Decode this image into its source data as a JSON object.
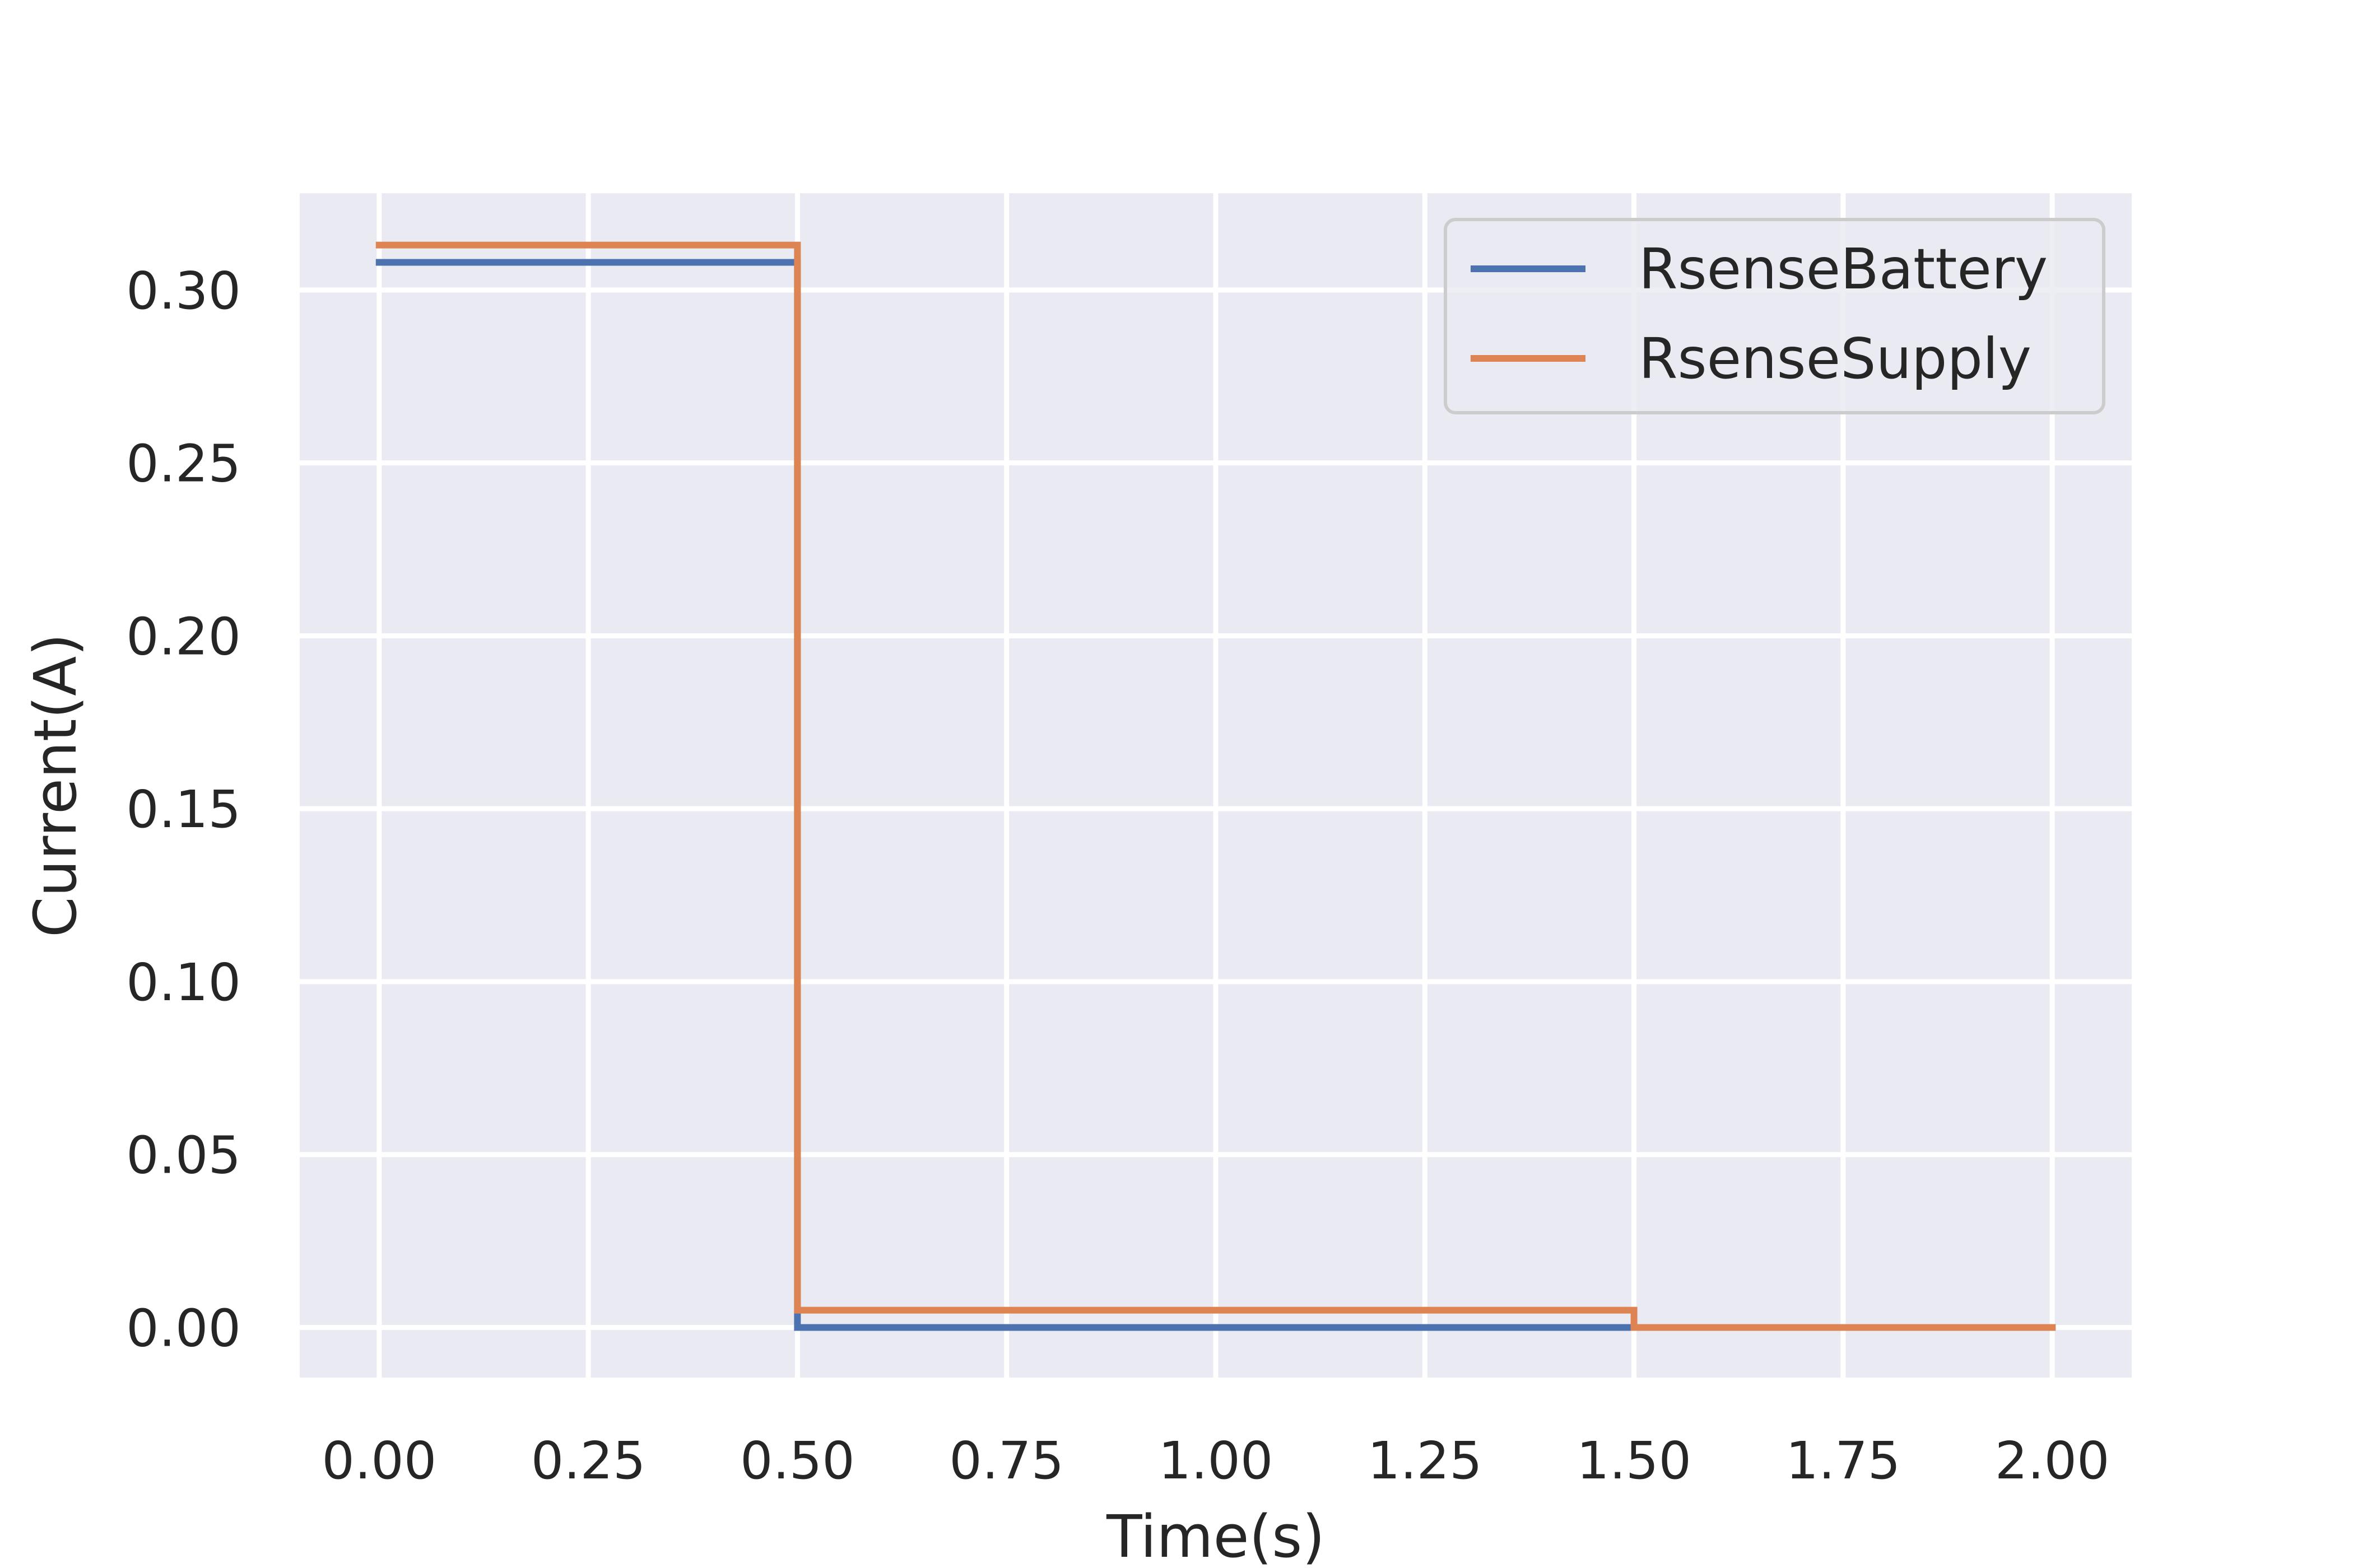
{
  "chart_data": {
    "type": "line",
    "title": "",
    "xlabel": "Time(s)",
    "ylabel": "Current(A)",
    "xlim": [
      -0.095,
      2.095
    ],
    "ylim": [
      -0.0145,
      0.328
    ],
    "xticks": [
      0.0,
      0.25,
      0.5,
      0.75,
      1.0,
      1.25,
      1.5,
      1.75,
      2.0
    ],
    "xtick_labels": [
      "0.00",
      "0.25",
      "0.50",
      "0.75",
      "1.00",
      "1.25",
      "1.50",
      "1.75",
      "2.00"
    ],
    "yticks": [
      0.0,
      0.05,
      0.1,
      0.15,
      0.2,
      0.25,
      0.3
    ],
    "ytick_labels": [
      "0.00",
      "0.05",
      "0.10",
      "0.15",
      "0.20",
      "0.25",
      "0.30"
    ],
    "grid": true,
    "legend_position": "top-right",
    "series": [
      {
        "name": "RsenseBattery",
        "color": "#4c72b0",
        "x": [
          0.0,
          0.5,
          0.5,
          1.5,
          1.5,
          2.0
        ],
        "y": [
          0.308,
          0.308,
          0.0,
          0.0,
          0.0,
          0.0
        ]
      },
      {
        "name": "RsenseSupply",
        "color": "#dd8452",
        "x": [
          0.0,
          0.5,
          0.5,
          1.5,
          1.5,
          2.0
        ],
        "y": [
          0.313,
          0.313,
          0.005,
          0.005,
          0.0,
          0.0
        ]
      }
    ],
    "colors": {
      "plot_background": "#eaeaf2",
      "grid": "#ffffff",
      "text": "#262626",
      "legend_border": "#cccccc"
    }
  }
}
